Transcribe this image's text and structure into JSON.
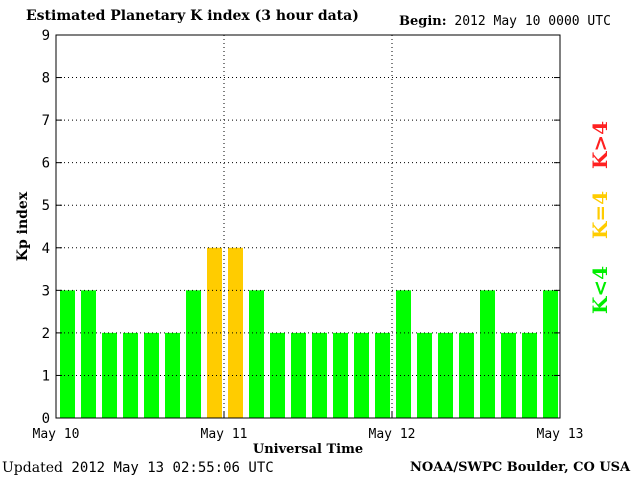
{
  "header": {
    "title": "Estimated Planetary K index (3 hour data)",
    "begin_label": "Begin:",
    "begin_value": "2012 May 10 0000 UTC"
  },
  "footer": {
    "updated_label": "Updated",
    "updated_value": "2012 May 13 02:55:06 UTC",
    "credit": "NOAA/SWPC Boulder, CO USA"
  },
  "legend": [
    {
      "label": "K>4",
      "color": "#ff2020"
    },
    {
      "label": "K=4",
      "color": "#ffcc00"
    },
    {
      "label": "K<4",
      "color": "#00ee00"
    }
  ],
  "chart_data": {
    "type": "bar",
    "title": "Estimated Planetary K index (3 hour data)",
    "xlabel": "Universal Time",
    "ylabel": "Kp index",
    "ylim": [
      0,
      9
    ],
    "yticks": [
      0,
      1,
      2,
      3,
      4,
      5,
      6,
      7,
      8,
      9
    ],
    "x_tick_labels": [
      "May 10",
      "May 11",
      "May 12",
      "May 13"
    ],
    "interval_hours": 3,
    "values": [
      3,
      3,
      2,
      2,
      2,
      2,
      3,
      4,
      4,
      3,
      2,
      2,
      2,
      2,
      2,
      2,
      3,
      2,
      2,
      2,
      3,
      2,
      2,
      3
    ],
    "colors": {
      "below4": "#00ff00",
      "equal4": "#ffcc00",
      "above4": "#ff2020"
    },
    "grid": true
  }
}
